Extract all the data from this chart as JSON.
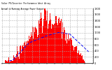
{
  "title1": "Solar PV/Inverter Performance West Array",
  "title2": "Actual & Running Average Power Output",
  "bar_color": "#ff0000",
  "avg_color": "#0000ff",
  "bg_color": "#ffffff",
  "grid_color": "#aaaaaa",
  "figsize": [
    1.6,
    1.0
  ],
  "dpi": 100,
  "ylim": [
    0,
    1800
  ],
  "yticks": [
    0,
    200,
    400,
    600,
    800,
    1000,
    1200,
    1400,
    1600,
    1800
  ],
  "n_bars": 140
}
